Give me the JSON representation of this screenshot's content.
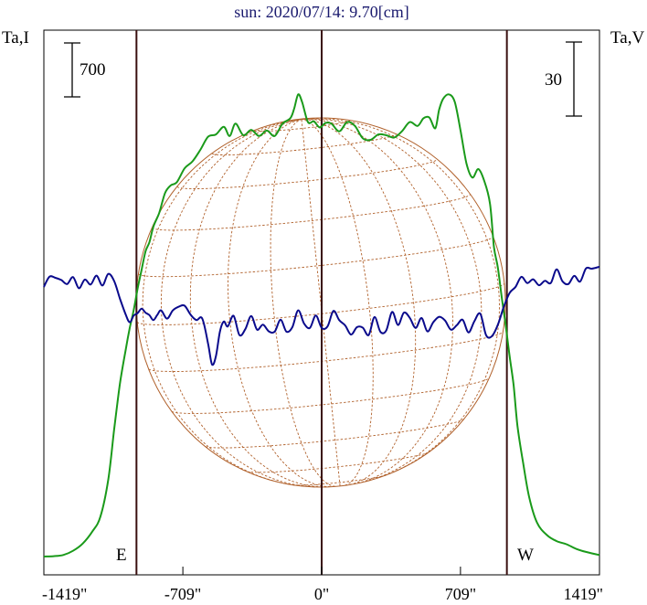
{
  "chart_data": {
    "type": "line",
    "title": "sun: 2020/07/14: 9.70[cm]",
    "left_axis_label": "Ta,I",
    "right_axis_label": "Ta,V",
    "left_scale_label": "700",
    "right_scale_label": "30",
    "limb_labels": {
      "east": "E",
      "west": "W"
    },
    "x_ticks": [
      {
        "value": -1419,
        "label": "-1419\""
      },
      {
        "value": -709,
        "label": "-709\""
      },
      {
        "value": 0,
        "label": "0\""
      },
      {
        "value": 709,
        "label": "709\""
      },
      {
        "value": 1419,
        "label": "1419\""
      }
    ],
    "xlim": [
      -1419,
      1419
    ],
    "limb_positions": [
      -946,
      0,
      946
    ],
    "grid": false,
    "colors": {
      "stokes_I": "#1a9a1a",
      "stokes_V": "#0a0a8c",
      "solar_disk": "#b0602a",
      "limb_lines": "#3a1010",
      "title": "#1a1a6e"
    },
    "series": [
      {
        "name": "Ta,I",
        "x": [
          -1419,
          -1370,
          -1320,
          -1270,
          -1220,
          -1170,
          -1130,
          -1090,
          -1060,
          -1030,
          -1000,
          -980,
          -960,
          -940,
          -920,
          -900,
          -880,
          -860,
          -830,
          -800,
          -770,
          -740,
          -700,
          -660,
          -620,
          -580,
          -540,
          -500,
          -470,
          -440,
          -400,
          -360,
          -320,
          -280,
          -240,
          -200,
          -160,
          -140,
          -120,
          -100,
          -70,
          -40,
          -10,
          20,
          50,
          90,
          130,
          170,
          210,
          250,
          290,
          330,
          370,
          410,
          450,
          490,
          520,
          550,
          580,
          600,
          620,
          650,
          680,
          710,
          740,
          770,
          800,
          830,
          860,
          880,
          900,
          920,
          940,
          960,
          980,
          1000,
          1030,
          1060,
          1100,
          1150,
          1200,
          1250,
          1300,
          1350,
          1419
        ],
        "values": [
          0,
          5,
          20,
          75,
          170,
          330,
          520,
          1000,
          1650,
          2250,
          2700,
          2970,
          3200,
          3480,
          3720,
          3960,
          4080,
          4280,
          4460,
          4720,
          4820,
          4860,
          5040,
          5130,
          5280,
          5450,
          5480,
          5580,
          5460,
          5620,
          5470,
          5540,
          5460,
          5530,
          5460,
          5620,
          5690,
          5820,
          6000,
          5900,
          5640,
          5650,
          5570,
          5630,
          5620,
          5520,
          5640,
          5590,
          5430,
          5410,
          5480,
          5470,
          5440,
          5520,
          5640,
          5590,
          5690,
          5700,
          5560,
          5800,
          5940,
          6000,
          5900,
          5520,
          5100,
          4920,
          5030,
          4880,
          4580,
          4020,
          3750,
          3360,
          3000,
          2600,
          2230,
          1700,
          1200,
          770,
          440,
          280,
          200,
          160,
          100,
          60,
          20
        ],
        "y_units": "Ta,I (scale bar = 700)"
      },
      {
        "name": "Ta,V",
        "x": [
          -1419,
          -1390,
          -1360,
          -1330,
          -1300,
          -1270,
          -1240,
          -1210,
          -1180,
          -1150,
          -1120,
          -1090,
          -1060,
          -1030,
          -1000,
          -980,
          -960,
          -940,
          -920,
          -900,
          -880,
          -860,
          -840,
          -820,
          -790,
          -760,
          -730,
          -700,
          -670,
          -640,
          -610,
          -580,
          -560,
          -540,
          -520,
          -500,
          -480,
          -450,
          -420,
          -390,
          -360,
          -330,
          -300,
          -270,
          -240,
          -210,
          -180,
          -150,
          -120,
          -90,
          -60,
          -30,
          0,
          30,
          60,
          90,
          120,
          150,
          180,
          210,
          240,
          270,
          300,
          330,
          360,
          390,
          420,
          450,
          480,
          510,
          540,
          570,
          600,
          630,
          660,
          690,
          720,
          750,
          780,
          810,
          840,
          870,
          900,
          930,
          960,
          990,
          1020,
          1050,
          1080,
          1110,
          1140,
          1170,
          1200,
          1230,
          1260,
          1290,
          1320,
          1350,
          1380,
          1419
        ],
        "values": [
          0.0,
          4.2,
          3.7,
          2.8,
          1.2,
          4.0,
          -0.5,
          3.0,
          1.0,
          4.6,
          0.6,
          5.3,
          2.4,
          -4.8,
          -11.4,
          -14.3,
          -11.6,
          -10.6,
          -8.8,
          -10.4,
          -11.4,
          -13.4,
          -11.4,
          -9.5,
          -12.8,
          -9.5,
          -8.0,
          -7.6,
          -11.2,
          -13.4,
          -12.8,
          -23.0,
          -31.4,
          -28.0,
          -18.2,
          -14.0,
          -16.0,
          -11.7,
          -19.5,
          -17.1,
          -11.8,
          -17.3,
          -15.3,
          -18.0,
          -18.1,
          -13.3,
          -18.1,
          -16.3,
          -9.5,
          -14.8,
          -16.6,
          -11.6,
          -16.6,
          -16.0,
          -9.7,
          -13.5,
          -15.6,
          -19.3,
          -16.3,
          -16.5,
          -19.5,
          -12.2,
          -18.2,
          -17.6,
          -10.1,
          -15.4,
          -10.4,
          -12.5,
          -16.6,
          -12.6,
          -18.0,
          -14.3,
          -12.1,
          -13.6,
          -17.3,
          -15.5,
          -13.3,
          -18.4,
          -13.9,
          -10.8,
          -19.6,
          -19.9,
          -15.3,
          -8.1,
          -2.4,
          0.0,
          4.1,
          1.6,
          3.1,
          0.7,
          2.5,
          1.6,
          7.1,
          2.3,
          1.2,
          4.5,
          2.2,
          7.5,
          7.4,
          8.2
        ],
        "y_units": "Ta,V (scale bar = 30)"
      }
    ]
  }
}
